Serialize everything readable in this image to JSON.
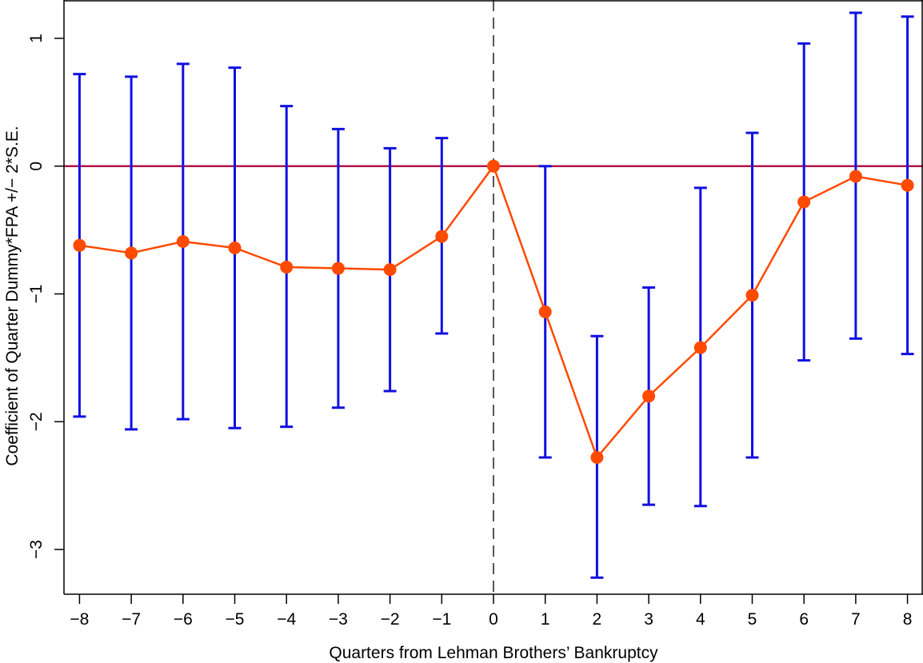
{
  "chart_data": {
    "type": "line",
    "xlabel": "Quarters from Lehman Brothers’ Bankruptcy",
    "ylabel": "Coefficient of Quarter Dummy*FPA +/− 2*S.E.",
    "xlim": [
      -8.3,
      8.3
    ],
    "ylim": [
      -3.35,
      1.3
    ],
    "x_ticks": [
      -8,
      -7,
      -6,
      -5,
      -4,
      -3,
      -2,
      -1,
      0,
      1,
      2,
      3,
      4,
      5,
      6,
      7,
      8
    ],
    "x_tick_labels": [
      "−8",
      "−7",
      "−6",
      "−5",
      "−4",
      "−3",
      "−2",
      "−1",
      "0",
      "1",
      "2",
      "3",
      "4",
      "5",
      "6",
      "7",
      "8"
    ],
    "y_ticks": [
      1,
      0,
      -1,
      -2,
      -3
    ],
    "y_tick_labels": [
      "1",
      "0",
      "−1",
      "−2",
      "−3"
    ],
    "x": [
      -8,
      -7,
      -6,
      -5,
      -4,
      -3,
      -2,
      -1,
      0,
      1,
      2,
      3,
      4,
      5,
      6,
      7,
      8
    ],
    "series": [
      {
        "values": [
          -0.62,
          -0.68,
          -0.59,
          -0.64,
          -0.79,
          -0.8,
          -0.81,
          -0.55,
          0.0,
          -1.14,
          -2.28,
          -1.8,
          -1.42,
          -1.01,
          -0.28,
          -0.08,
          -0.15
        ],
        "lower": [
          -1.96,
          -2.06,
          -1.98,
          -2.05,
          -2.04,
          -1.89,
          -1.76,
          -1.31,
          0.0,
          -2.28,
          -3.22,
          -2.65,
          -2.66,
          -2.28,
          -1.52,
          -1.35,
          -1.47
        ],
        "upper": [
          0.72,
          0.7,
          0.8,
          0.77,
          0.47,
          0.29,
          0.14,
          0.22,
          0.0,
          0.0,
          -1.33,
          -0.95,
          -0.17,
          0.26,
          0.96,
          1.2,
          1.17
        ]
      }
    ],
    "reference_line_y": 0,
    "vertical_line_x": 0,
    "grid": false,
    "colors": {
      "series": "#ff4a00",
      "error_bars": "#1010e0",
      "reference_line": "#b0144a",
      "vertical_line": "#444444"
    }
  }
}
